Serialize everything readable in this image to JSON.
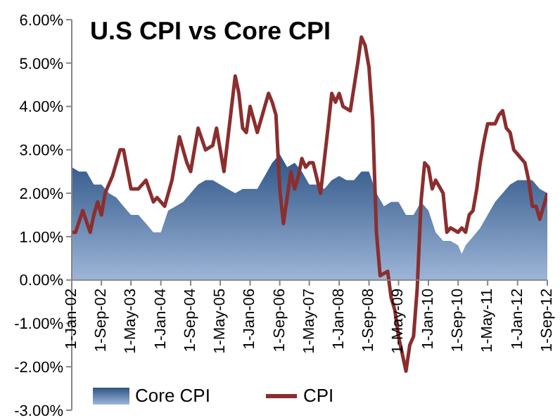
{
  "chart_data": {
    "type": "area",
    "title": "U.S CPI vs Core CPI",
    "ylim": [
      -3,
      6
    ],
    "yticks": [
      {
        "value": -3,
        "label": "-3.00%"
      },
      {
        "value": -2,
        "label": "-2.00%"
      },
      {
        "value": -1,
        "label": "-1.00%"
      },
      {
        "value": 0,
        "label": "0.00%"
      },
      {
        "value": 1,
        "label": "1.00%"
      },
      {
        "value": 2,
        "label": "2.00%"
      },
      {
        "value": 3,
        "label": "3.00%"
      },
      {
        "value": 4,
        "label": "4.00%"
      },
      {
        "value": 5,
        "label": "5.00%"
      },
      {
        "value": 6,
        "label": "6.00%"
      }
    ],
    "xlim": [
      "2002-01-01",
      "2012-09-01"
    ],
    "xticks": [
      {
        "value": "2002-01-01",
        "label": "1-Jan-02"
      },
      {
        "value": "2002-09-01",
        "label": "1-Sep-02"
      },
      {
        "value": "2003-05-01",
        "label": "1-May-03"
      },
      {
        "value": "2004-01-01",
        "label": "1-Jan-04"
      },
      {
        "value": "2004-09-01",
        "label": "1-Sep-04"
      },
      {
        "value": "2005-05-01",
        "label": "1-May-05"
      },
      {
        "value": "2006-01-01",
        "label": "1-Jan-06"
      },
      {
        "value": "2006-09-01",
        "label": "1-Sep-06"
      },
      {
        "value": "2007-05-01",
        "label": "1-May-07"
      },
      {
        "value": "2008-01-01",
        "label": "1-Jan-08"
      },
      {
        "value": "2008-09-01",
        "label": "1-Sep-08"
      },
      {
        "value": "2009-05-01",
        "label": "1-May-09"
      },
      {
        "value": "2010-01-01",
        "label": "1-Jan-10"
      },
      {
        "value": "2010-09-01",
        "label": "1-Sep-10"
      },
      {
        "value": "2011-05-01",
        "label": "1-May-11"
      },
      {
        "value": "2012-01-01",
        "label": "1-Jan-12"
      },
      {
        "value": "2012-09-01",
        "label": "1-Sep-12"
      }
    ],
    "legend": "bottom",
    "grid": false,
    "series": [
      {
        "name": "Core CPI",
        "type": "area",
        "color": "#2e5486",
        "x": [
          "2002-01",
          "2002-03",
          "2002-05",
          "2002-07",
          "2002-09",
          "2002-11",
          "2003-01",
          "2003-03",
          "2003-05",
          "2003-07",
          "2003-09",
          "2003-11",
          "2004-01",
          "2004-03",
          "2004-05",
          "2004-07",
          "2004-09",
          "2004-11",
          "2005-01",
          "2005-03",
          "2005-05",
          "2005-07",
          "2005-09",
          "2005-11",
          "2006-01",
          "2006-03",
          "2006-05",
          "2006-07",
          "2006-09",
          "2006-11",
          "2007-01",
          "2007-03",
          "2007-05",
          "2007-07",
          "2007-09",
          "2007-11",
          "2008-01",
          "2008-03",
          "2008-05",
          "2008-07",
          "2008-09",
          "2008-11",
          "2009-01",
          "2009-03",
          "2009-05",
          "2009-07",
          "2009-09",
          "2009-11",
          "2010-01",
          "2010-03",
          "2010-05",
          "2010-07",
          "2010-09",
          "2010-10",
          "2010-11",
          "2011-01",
          "2011-03",
          "2011-05",
          "2011-07",
          "2011-09",
          "2011-11",
          "2012-01",
          "2012-03",
          "2012-05",
          "2012-07",
          "2012-09"
        ],
        "values": [
          2.6,
          2.5,
          2.5,
          2.2,
          2.2,
          2.0,
          1.9,
          1.7,
          1.5,
          1.5,
          1.3,
          1.1,
          1.1,
          1.6,
          1.7,
          1.8,
          2.0,
          2.2,
          2.3,
          2.3,
          2.2,
          2.1,
          2.0,
          2.1,
          2.1,
          2.1,
          2.4,
          2.7,
          2.9,
          2.6,
          2.7,
          2.5,
          2.2,
          2.2,
          2.1,
          2.3,
          2.4,
          2.3,
          2.3,
          2.5,
          2.5,
          2.0,
          1.7,
          1.8,
          1.8,
          1.5,
          1.5,
          1.8,
          1.6,
          1.1,
          0.9,
          0.9,
          0.8,
          0.6,
          0.8,
          1.0,
          1.2,
          1.5,
          1.8,
          2.0,
          2.2,
          2.3,
          2.3,
          2.3,
          2.1,
          2.0
        ]
      },
      {
        "name": "CPI",
        "type": "line",
        "color": "#8b2e2e",
        "x": [
          "2002-01",
          "2002-02",
          "2002-04",
          "2002-06",
          "2002-07",
          "2002-08",
          "2002-09",
          "2002-10",
          "2002-12",
          "2003-02",
          "2003-03",
          "2003-05",
          "2003-07",
          "2003-09",
          "2003-11",
          "2003-12",
          "2004-02",
          "2004-04",
          "2004-06",
          "2004-08",
          "2004-09",
          "2004-11",
          "2005-01",
          "2005-03",
          "2005-04",
          "2005-06",
          "2005-09",
          "2005-10",
          "2005-11",
          "2005-12",
          "2006-01",
          "2006-03",
          "2006-06",
          "2006-07",
          "2006-08",
          "2006-09",
          "2006-10",
          "2006-12",
          "2007-01",
          "2007-02",
          "2007-03",
          "2007-04",
          "2007-05",
          "2007-06",
          "2007-08",
          "2007-10",
          "2007-11",
          "2007-12",
          "2008-01",
          "2008-02",
          "2008-04",
          "2008-06",
          "2008-07",
          "2008-08",
          "2008-09",
          "2008-10",
          "2008-11",
          "2008-12",
          "2009-02",
          "2009-03",
          "2009-04",
          "2009-05",
          "2009-07",
          "2009-08",
          "2009-09",
          "2009-10",
          "2009-11",
          "2009-12",
          "2010-01",
          "2010-02",
          "2010-03",
          "2010-05",
          "2010-06",
          "2010-07",
          "2010-09",
          "2010-10",
          "2010-11",
          "2010-12",
          "2011-01",
          "2011-02",
          "2011-03",
          "2011-04",
          "2011-05",
          "2011-06",
          "2011-07",
          "2011-08",
          "2011-09",
          "2011-10",
          "2011-11",
          "2011-12",
          "2012-01",
          "2012-03",
          "2012-04",
          "2012-05",
          "2012-06",
          "2012-07",
          "2012-08",
          "2012-09"
        ],
        "values": [
          1.1,
          1.1,
          1.6,
          1.1,
          1.5,
          1.8,
          1.5,
          2.0,
          2.4,
          3.0,
          3.0,
          2.1,
          2.1,
          2.3,
          1.8,
          1.9,
          1.7,
          2.3,
          3.3,
          2.7,
          2.5,
          3.5,
          3.0,
          3.1,
          3.5,
          2.5,
          4.7,
          4.3,
          3.5,
          3.4,
          4.0,
          3.4,
          4.3,
          4.1,
          3.8,
          2.1,
          1.3,
          2.5,
          2.1,
          2.4,
          2.8,
          2.6,
          2.7,
          2.7,
          2.0,
          3.5,
          4.3,
          4.1,
          4.3,
          4.0,
          3.9,
          5.0,
          5.6,
          5.4,
          4.9,
          3.7,
          1.1,
          0.1,
          0.2,
          -0.4,
          -0.7,
          -1.3,
          -2.1,
          -1.5,
          -1.3,
          -0.2,
          1.8,
          2.7,
          2.6,
          2.1,
          2.3,
          2.0,
          1.1,
          1.2,
          1.1,
          1.2,
          1.1,
          1.5,
          1.6,
          2.1,
          2.7,
          3.2,
          3.6,
          3.6,
          3.6,
          3.8,
          3.9,
          3.5,
          3.4,
          3.0,
          2.9,
          2.7,
          2.3,
          1.7,
          1.7,
          1.4,
          1.7,
          2.0
        ]
      }
    ]
  }
}
